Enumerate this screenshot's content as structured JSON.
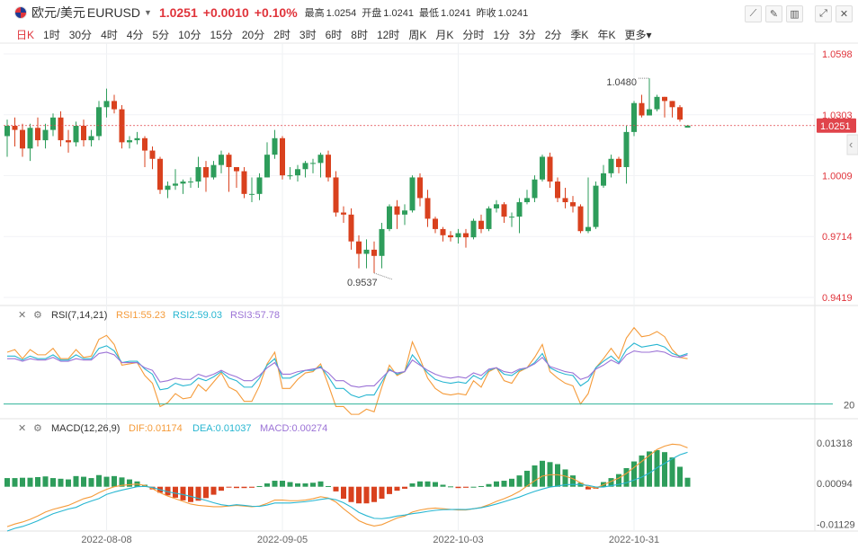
{
  "header": {
    "pair_name": "欧元/美元",
    "symbol": "EURUSD",
    "price": "1.0251",
    "change": "+0.0010",
    "change_pct": "+0.10%",
    "stats": [
      {
        "label": "最高",
        "value": "1.0254"
      },
      {
        "label": "开盘",
        "value": "1.0241"
      },
      {
        "label": "最低",
        "value": "1.0241"
      },
      {
        "label": "昨收",
        "value": "1.0241"
      }
    ]
  },
  "toolbar": {
    "left_tools": [
      "crosshair-icon",
      "draw-icon",
      "candle-style-icon"
    ],
    "right_tools": [
      "fullscreen-icon",
      "close-icon"
    ]
  },
  "periods": [
    "日K",
    "1时",
    "30分",
    "4时",
    "4分",
    "5分",
    "10分",
    "15分",
    "20分",
    "2时",
    "3时",
    "6时",
    "8时",
    "12时",
    "周K",
    "月K",
    "分时",
    "1分",
    "3分",
    "2分",
    "季K",
    "年K",
    "更多"
  ],
  "active_period": "日K",
  "colors": {
    "up": "#2e9d5b",
    "down": "#d9411e",
    "rsi1": "#f59b3a",
    "rsi2": "#27b6d1",
    "rsi3": "#9b72d6",
    "dif": "#f59b3a",
    "dea": "#27b6d1",
    "price_tag": "#e0444b"
  },
  "chart_data": [
    {
      "type": "candlestick",
      "price_axis_ticks": [
        "1.0598",
        "1.0303",
        "1.0009",
        "0.9714",
        "0.9419"
      ],
      "current_price_label": "1.0251",
      "annotations": {
        "high": "1.0480",
        "low": "0.9537"
      },
      "x_tick_labels": [
        "2022-08-08",
        "2022-09-05",
        "2022-10-03",
        "2022-10-31"
      ],
      "ylim": [
        0.9419,
        1.0598
      ],
      "candles": [
        [
          1.02,
          1.025,
          1.028,
          1.01
        ],
        [
          1.025,
          1.023,
          1.029,
          1.015
        ],
        [
          1.023,
          1.014,
          1.026,
          1.01
        ],
        [
          1.014,
          1.024,
          1.026,
          1.008
        ],
        [
          1.024,
          1.018,
          1.029,
          1.015
        ],
        [
          1.018,
          1.023,
          1.026,
          1.014
        ],
        [
          1.023,
          1.029,
          1.031,
          1.02
        ],
        [
          1.029,
          1.018,
          1.032,
          1.015
        ],
        [
          1.018,
          1.017,
          1.023,
          1.012
        ],
        [
          1.017,
          1.025,
          1.027,
          1.015
        ],
        [
          1.025,
          1.018,
          1.028,
          1.015
        ],
        [
          1.018,
          1.02,
          1.023,
          1.015
        ],
        [
          1.02,
          1.034,
          1.037,
          1.018
        ],
        [
          1.034,
          1.037,
          1.043,
          1.029
        ],
        [
          1.037,
          1.033,
          1.04,
          1.031
        ],
        [
          1.033,
          1.017,
          1.035,
          1.014
        ],
        [
          1.017,
          1.018,
          1.02,
          1.014
        ],
        [
          1.018,
          1.019,
          1.022,
          1.016
        ],
        [
          1.019,
          1.013,
          1.02,
          1.005
        ],
        [
          1.013,
          1.009,
          1.015,
          1.004
        ],
        [
          1.009,
          0.994,
          1.01,
          0.992
        ],
        [
          0.994,
          0.996,
          0.998,
          0.99
        ],
        [
          0.996,
          0.997,
          1.004,
          0.994
        ],
        [
          0.997,
          0.998,
          0.999,
          0.992
        ],
        [
          0.998,
          0.998,
          1.0,
          0.995
        ],
        [
          0.998,
          1.005,
          1.01,
          0.995
        ],
        [
          1.005,
          1.0,
          1.008,
          0.993
        ],
        [
          1.0,
          1.006,
          1.008,
          0.999
        ],
        [
          1.006,
          1.011,
          1.013,
          1.002
        ],
        [
          1.011,
          1.005,
          1.012,
          0.993
        ],
        [
          1.005,
          1.003,
          1.005,
          0.995
        ],
        [
          1.003,
          0.992,
          1.005,
          0.99
        ],
        [
          0.992,
          0.992,
          1.0,
          0.988
        ],
        [
          0.992,
          1.0,
          1.002,
          0.989
        ],
        [
          1.0,
          1.011,
          1.017,
          1.0
        ],
        [
          1.011,
          1.019,
          1.023,
          1.009
        ],
        [
          1.019,
          1.001,
          1.02,
          0.999
        ],
        [
          1.001,
          1.001,
          1.005,
          0.999
        ],
        [
          1.001,
          1.004,
          1.006,
          0.998
        ],
        [
          1.004,
          1.007,
          1.008,
          1.0
        ],
        [
          1.007,
          1.007,
          1.009,
          1.002
        ],
        [
          1.007,
          1.011,
          1.012,
          1.0
        ],
        [
          1.011,
          1.0,
          1.013,
          0.998
        ],
        [
          1.0,
          0.983,
          1.003,
          0.981
        ],
        [
          0.983,
          0.982,
          0.986,
          0.978
        ],
        [
          0.982,
          0.969,
          0.985,
          0.965
        ],
        [
          0.969,
          0.963,
          0.972,
          0.956
        ],
        [
          0.963,
          0.965,
          0.97,
          0.956
        ],
        [
          0.965,
          0.962,
          0.969,
          0.9537
        ],
        [
          0.962,
          0.975,
          0.978,
          0.956
        ],
        [
          0.975,
          0.986,
          0.987,
          0.974
        ],
        [
          0.986,
          0.982,
          0.989,
          0.975
        ],
        [
          0.982,
          0.984,
          0.987,
          0.977
        ],
        [
          0.984,
          1.0,
          1.001,
          0.983
        ],
        [
          1.0,
          0.99,
          1.002,
          0.986
        ],
        [
          0.99,
          0.98,
          0.994,
          0.976
        ],
        [
          0.98,
          0.975,
          0.981,
          0.973
        ],
        [
          0.975,
          0.972,
          0.976,
          0.969
        ],
        [
          0.972,
          0.971,
          0.974,
          0.969
        ],
        [
          0.971,
          0.973,
          0.975,
          0.968
        ],
        [
          0.973,
          0.971,
          0.975,
          0.966
        ],
        [
          0.971,
          0.979,
          0.98,
          0.97
        ],
        [
          0.979,
          0.975,
          0.982,
          0.973
        ],
        [
          0.975,
          0.985,
          0.986,
          0.974
        ],
        [
          0.985,
          0.987,
          0.989,
          0.983
        ],
        [
          0.987,
          0.981,
          0.988,
          0.978
        ],
        [
          0.981,
          0.981,
          0.983,
          0.976
        ],
        [
          0.981,
          0.988,
          0.99,
          0.973
        ],
        [
          0.988,
          0.99,
          0.994,
          0.987
        ],
        [
          0.99,
          0.999,
          1.001,
          0.988
        ],
        [
          0.999,
          1.01,
          1.011,
          0.998
        ],
        [
          1.01,
          0.998,
          1.012,
          0.995
        ],
        [
          0.998,
          0.99,
          1.0,
          0.988
        ],
        [
          0.99,
          0.988,
          0.995,
          0.985
        ],
        [
          0.988,
          0.986,
          0.991,
          0.983
        ],
        [
          0.986,
          0.974,
          0.987,
          0.973
        ],
        [
          0.974,
          0.976,
          1.0,
          0.973
        ],
        [
          0.976,
          0.996,
          0.998,
          0.975
        ],
        [
          0.996,
          1.002,
          1.006,
          0.995
        ],
        [
          1.002,
          1.009,
          1.011,
          1.0
        ],
        [
          1.009,
          1.005,
          1.01,
          1.002
        ],
        [
          1.005,
          1.022,
          1.025,
          0.997
        ],
        [
          1.022,
          1.036,
          1.037,
          1.02
        ],
        [
          1.036,
          1.03,
          1.04,
          1.029
        ],
        [
          1.03,
          1.033,
          1.048,
          1.03
        ],
        [
          1.033,
          1.039,
          1.04,
          1.032
        ],
        [
          1.039,
          1.037,
          1.039,
          1.029
        ],
        [
          1.037,
          1.034,
          1.037,
          1.029
        ],
        [
          1.034,
          1.028,
          1.035,
          1.027
        ],
        [
          1.0241,
          1.0251,
          1.0254,
          1.0241
        ]
      ]
    },
    {
      "type": "line",
      "title": "RSI(7,14,21)",
      "series": [
        {
          "name": "RSI1",
          "label": "RSI1:55.23",
          "values": [
            60,
            62,
            55,
            62,
            58,
            58,
            63,
            55,
            55,
            62,
            56,
            57,
            70,
            73,
            66,
            50,
            51,
            52,
            42,
            36,
            18,
            21,
            28,
            24,
            25,
            35,
            30,
            37,
            44,
            33,
            30,
            22,
            22,
            34,
            51,
            60,
            32,
            32,
            39,
            44,
            45,
            51,
            35,
            18,
            18,
            12,
            12,
            16,
            14,
            33,
            50,
            42,
            45,
            68,
            55,
            40,
            32,
            28,
            27,
            28,
            27,
            38,
            33,
            45,
            48,
            38,
            36,
            45,
            48,
            56,
            66,
            45,
            40,
            36,
            34,
            20,
            28,
            48,
            55,
            63,
            55,
            71,
            79,
            72,
            73,
            76,
            72,
            62,
            56,
            55
          ]
        },
        {
          "name": "RSI2",
          "label": "RSI2:59.03",
          "values": [
            57,
            57,
            54,
            57,
            55,
            55,
            58,
            54,
            54,
            58,
            55,
            55,
            63,
            65,
            61,
            52,
            53,
            53,
            47,
            43,
            31,
            32,
            36,
            34,
            35,
            40,
            38,
            41,
            45,
            40,
            38,
            33,
            33,
            40,
            50,
            55,
            40,
            40,
            43,
            46,
            46,
            49,
            41,
            32,
            32,
            27,
            25,
            27,
            27,
            37,
            47,
            43,
            45,
            58,
            51,
            44,
            39,
            37,
            36,
            37,
            36,
            42,
            39,
            46,
            48,
            43,
            42,
            46,
            48,
            52,
            59,
            48,
            45,
            43,
            42,
            34,
            38,
            48,
            53,
            57,
            52,
            62,
            67,
            64,
            65,
            66,
            64,
            59,
            57,
            59
          ]
        },
        {
          "name": "RSI3",
          "label": "RSI3:57.78",
          "values": [
            55,
            55,
            53,
            55,
            54,
            54,
            56,
            53,
            53,
            55,
            54,
            54,
            59,
            60,
            58,
            52,
            52,
            52,
            48,
            46,
            37,
            38,
            40,
            39,
            39,
            43,
            41,
            43,
            46,
            43,
            41,
            38,
            38,
            42,
            48,
            52,
            43,
            43,
            45,
            46,
            47,
            48,
            44,
            38,
            38,
            34,
            33,
            34,
            34,
            40,
            46,
            44,
            45,
            54,
            50,
            46,
            43,
            41,
            40,
            41,
            40,
            44,
            42,
            47,
            48,
            45,
            44,
            47,
            48,
            51,
            56,
            49,
            47,
            45,
            44,
            39,
            41,
            47,
            50,
            54,
            51,
            58,
            61,
            60,
            60,
            61,
            60,
            57,
            56,
            58
          ]
        }
      ],
      "reference_line_label": "20",
      "ylim": [
        10,
        85
      ]
    },
    {
      "type": "bar",
      "title": "MACD(12,26,9)",
      "series_labels": {
        "dif": "DIF:0.01174",
        "dea": "DEA:0.01037",
        "macd": "MACD:0.00274"
      },
      "axis_ticks": [
        "0.01318",
        "0.00094",
        "-0.01129"
      ],
      "macd_values": [
        0.0026,
        0.0026,
        0.0027,
        0.0027,
        0.0029,
        0.0031,
        0.0026,
        0.0024,
        0.0022,
        0.0032,
        0.003,
        0.0026,
        0.0035,
        0.003,
        0.0032,
        0.0028,
        0.0022,
        0.0016,
        0.0006,
        -0.0008,
        -0.0018,
        -0.0026,
        -0.0033,
        -0.0041,
        -0.0046,
        -0.0042,
        -0.0034,
        -0.0024,
        -0.0012,
        -0.0002,
        -0.0004,
        -0.0004,
        -0.0003,
        0.0002,
        0.001,
        0.0018,
        0.0018,
        0.0014,
        0.001,
        0.001,
        0.0012,
        0.0016,
        0.0002,
        -0.0014,
        -0.0036,
        -0.0046,
        -0.005,
        -0.005,
        -0.0046,
        -0.0036,
        -0.0022,
        -0.0012,
        -0.0006,
        0.001,
        0.0016,
        0.0016,
        0.0014,
        0.0006,
        0.0001,
        -0.0004,
        -0.0003,
        0.0,
        0.0002,
        0.0008,
        0.0016,
        0.0018,
        0.0024,
        0.0034,
        0.0048,
        0.0064,
        0.0078,
        0.0074,
        0.0068,
        0.0052,
        0.0034,
        0.0012,
        -0.0008,
        -0.0006,
        0.0014,
        0.0026,
        0.0038,
        0.0056,
        0.0076,
        0.0094,
        0.0106,
        0.011,
        0.0104,
        0.0088,
        0.006,
        0.0027
      ],
      "dif": [
        -0.012,
        -0.0112,
        -0.0106,
        -0.0098,
        -0.0088,
        -0.0076,
        -0.0068,
        -0.0062,
        -0.0056,
        -0.0046,
        -0.0036,
        -0.003,
        -0.0018,
        -0.0008,
        0.0,
        0.0004,
        0.0006,
        0.0008,
        0.0004,
        -0.0006,
        -0.0018,
        -0.0028,
        -0.0036,
        -0.0044,
        -0.0052,
        -0.0056,
        -0.0058,
        -0.006,
        -0.006,
        -0.0058,
        -0.0056,
        -0.0058,
        -0.006,
        -0.0058,
        -0.005,
        -0.004,
        -0.004,
        -0.0042,
        -0.0042,
        -0.004,
        -0.0036,
        -0.003,
        -0.0034,
        -0.0046,
        -0.0066,
        -0.0084,
        -0.0102,
        -0.0112,
        -0.0118,
        -0.0114,
        -0.0104,
        -0.0094,
        -0.0088,
        -0.0076,
        -0.007,
        -0.0066,
        -0.0064,
        -0.0066,
        -0.0068,
        -0.007,
        -0.007,
        -0.0066,
        -0.0062,
        -0.0054,
        -0.0044,
        -0.0036,
        -0.0026,
        -0.0014,
        0.0002,
        0.0018,
        0.0032,
        0.0036,
        0.0036,
        0.0032,
        0.0024,
        0.0012,
        0.0,
        -0.0004,
        0.0006,
        0.0016,
        0.0026,
        0.004,
        0.0058,
        0.0076,
        0.0094,
        0.0112,
        0.0122,
        0.0128,
        0.0126,
        0.0117
      ]
    }
  ]
}
